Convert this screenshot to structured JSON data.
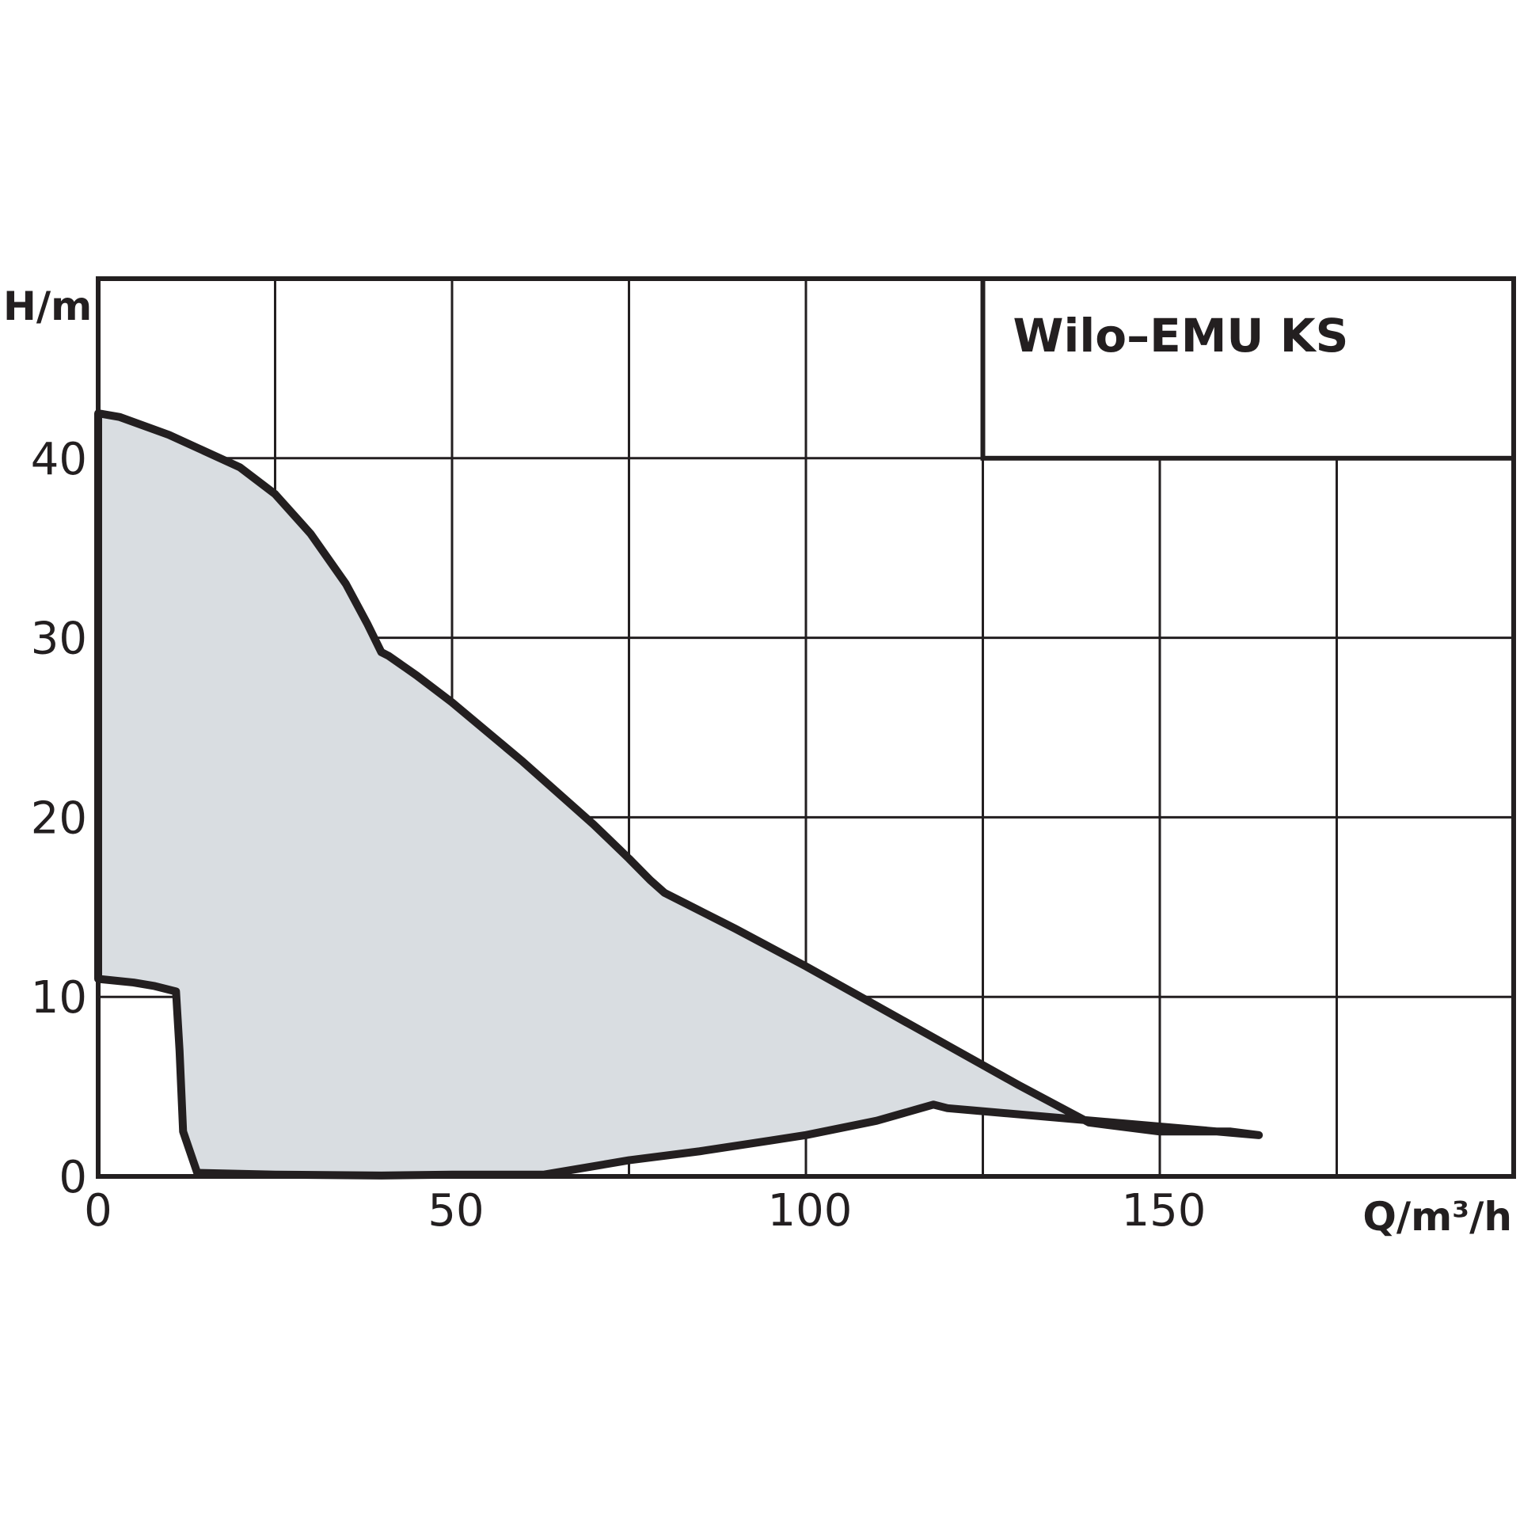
{
  "chart_data": {
    "type": "area",
    "title": "Wilo–EMU KS",
    "xlabel": "Q/m³/h",
    "ylabel": "H/m",
    "xlim": [
      0,
      200
    ],
    "ylim": [
      0,
      50
    ],
    "x_ticks": [
      0,
      50,
      100,
      150
    ],
    "x_tick_labels": [
      "0",
      "50",
      "100",
      "150"
    ],
    "y_ticks": [
      0,
      10,
      20,
      30,
      40
    ],
    "y_tick_labels": [
      "0",
      "10",
      "20",
      "30",
      "40"
    ],
    "grid": true,
    "fill_color": "#d9dde1",
    "line_color": "#231f20",
    "envelope": {
      "upper": {
        "x": [
          0,
          3,
          10,
          20,
          25,
          30,
          35,
          38,
          40,
          41,
          45,
          50,
          60,
          70,
          75,
          78,
          80,
          90,
          100,
          110,
          120,
          130,
          140,
          150,
          160,
          164
        ],
        "y": [
          42.5,
          42.3,
          41.3,
          39.5,
          38.0,
          35.8,
          33.0,
          30.8,
          29.2,
          29.0,
          27.9,
          26.4,
          23.1,
          19.6,
          17.7,
          16.5,
          15.8,
          13.8,
          11.7,
          9.5,
          7.3,
          5.1,
          3.0,
          2.5,
          2.5,
          2.3
        ]
      },
      "lower": {
        "x": [
          164,
          120,
          118,
          110,
          100,
          95,
          85,
          75,
          63,
          50,
          40,
          25,
          14,
          12,
          11.5,
          11,
          8,
          5,
          0
        ],
        "y": [
          2.3,
          3.8,
          4.0,
          3.1,
          2.3,
          2.0,
          1.4,
          0.9,
          0.1,
          0.1,
          0.05,
          0.1,
          0.2,
          2.5,
          7.0,
          10.3,
          10.6,
          10.8,
          11.0
        ]
      }
    }
  }
}
